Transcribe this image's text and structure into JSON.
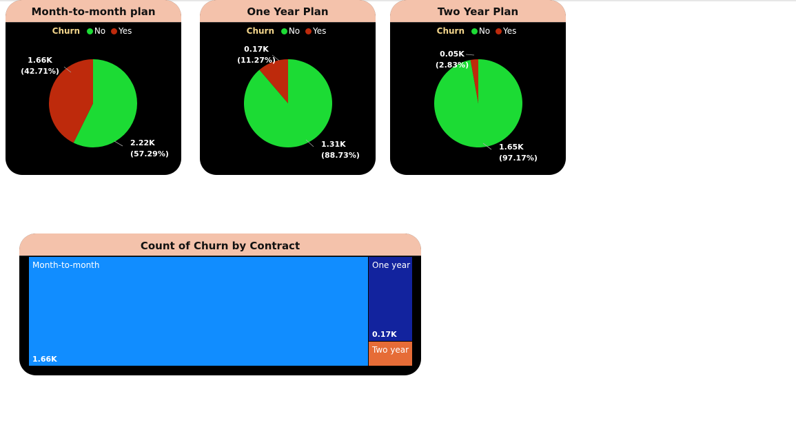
{
  "chart_data": [
    {
      "type": "pie",
      "title": "Month-to-month plan",
      "legend": {
        "title": "Churn",
        "placement": "top-center"
      },
      "slices": [
        {
          "name": "No",
          "value": 2.22,
          "label": "2.22K",
          "pct": 57.29,
          "pct_label": "(57.29%)",
          "color": "#1cdb34"
        },
        {
          "name": "Yes",
          "value": 1.66,
          "label": "1.66K",
          "pct": 42.71,
          "pct_label": "(42.71%)",
          "color": "#be2a0c"
        }
      ]
    },
    {
      "type": "pie",
      "title": "One Year Plan",
      "legend": {
        "title": "Churn",
        "placement": "top-center"
      },
      "slices": [
        {
          "name": "No",
          "value": 1.31,
          "label": "1.31K",
          "pct": 88.73,
          "pct_label": "(88.73%)",
          "color": "#1cdb34"
        },
        {
          "name": "Yes",
          "value": 0.17,
          "label": "0.17K",
          "pct": 11.27,
          "pct_label": "(11.27%)",
          "color": "#be2a0c"
        }
      ]
    },
    {
      "type": "pie",
      "title": "Two Year Plan",
      "legend": {
        "title": "Churn",
        "placement": "top-center"
      },
      "slices": [
        {
          "name": "No",
          "value": 1.65,
          "label": "1.65K",
          "pct": 97.17,
          "pct_label": "(97.17%)",
          "color": "#1cdb34"
        },
        {
          "name": "Yes",
          "value": 0.05,
          "label": "0.05K",
          "pct": 2.83,
          "pct_label": "(2.83%)",
          "color": "#be2a0c"
        }
      ]
    },
    {
      "type": "treemap",
      "title": "Count of Churn by Contract",
      "items": [
        {
          "name": "Month-to-month",
          "value": 1.66,
          "label": "1.66K",
          "color": "#118dff"
        },
        {
          "name": "One year",
          "value": 0.17,
          "label": "0.17K",
          "color": "#12239e"
        },
        {
          "name": "Two year",
          "value": 0.05,
          "label": "",
          "color": "#e66c37"
        }
      ]
    }
  ]
}
